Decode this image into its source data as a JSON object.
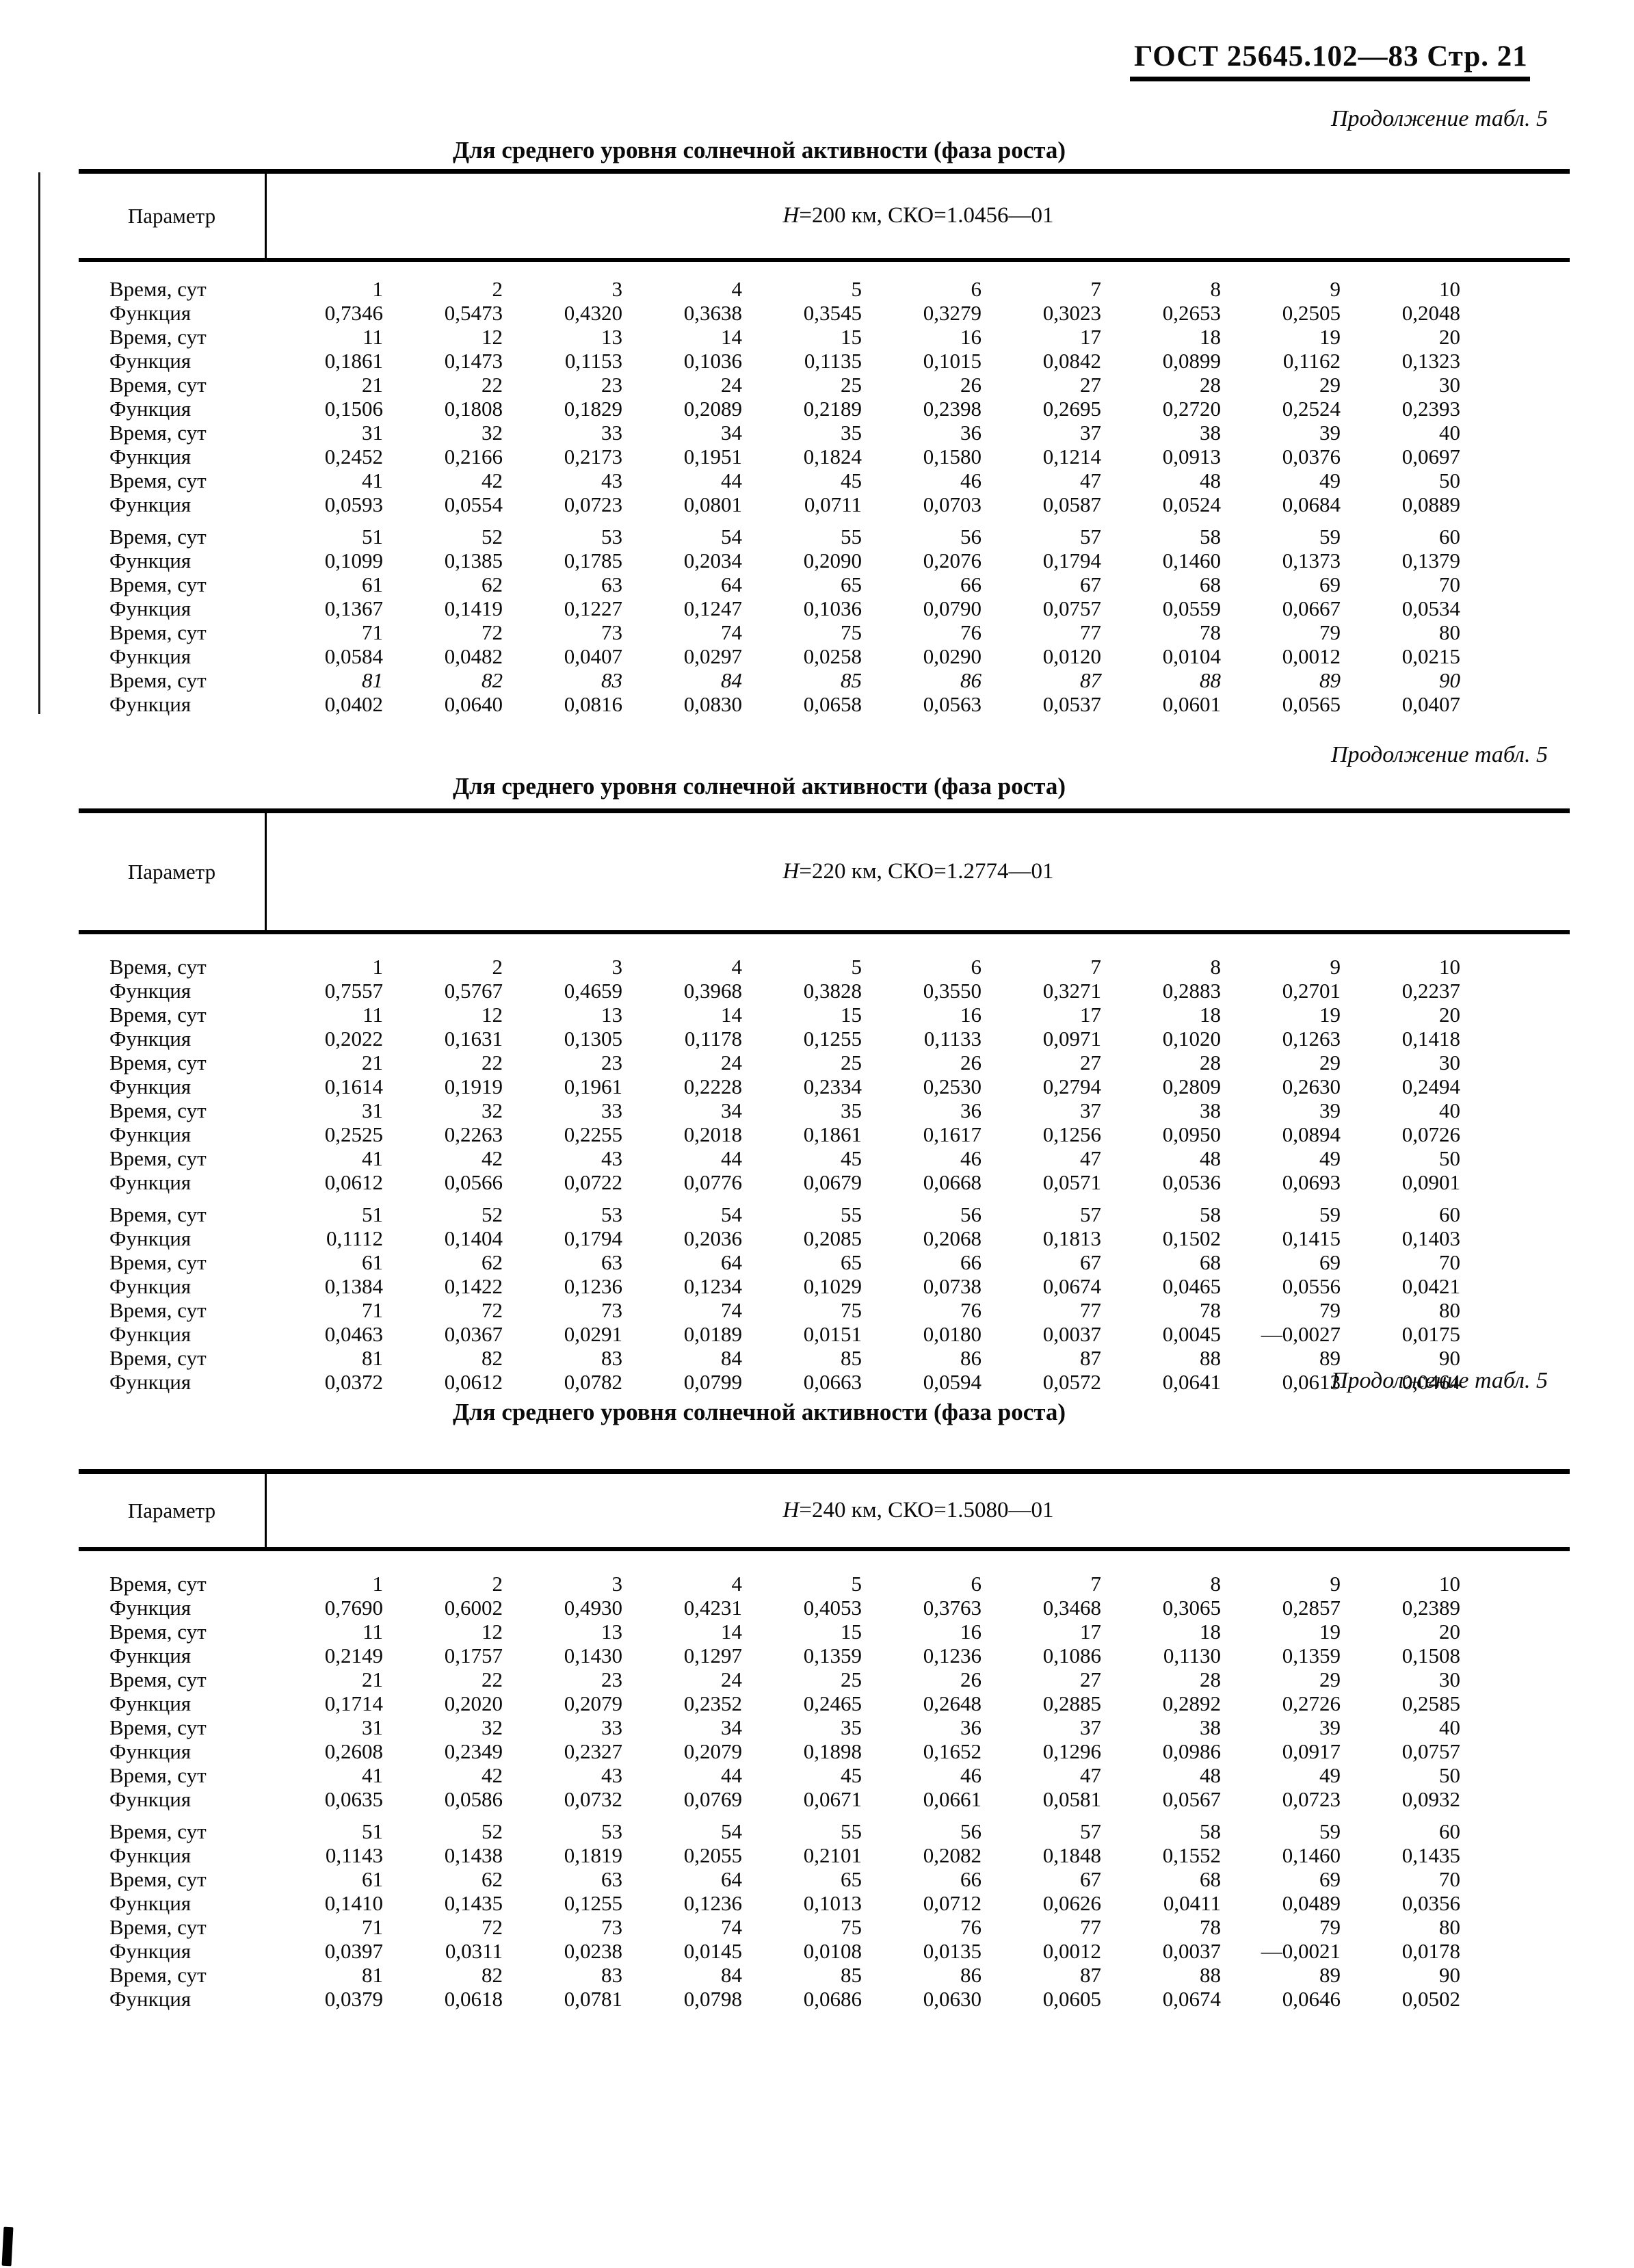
{
  "page_header": {
    "title": "ГОСТ 25645.102—83 Стр. 21"
  },
  "sections": [
    {
      "continuation": "Продолжение табл. 5",
      "title": "Для среднего уровня солнечной активности (фаза роста)",
      "param_label": "Параметр",
      "time_label": "Время, сут",
      "function_label": "Функция",
      "condition_h": "H",
      "condition_rest": "=200 км, СКО=1.0456—01",
      "pairs": [
        {
          "days": [
            "1",
            "2",
            "3",
            "4",
            "5",
            "6",
            "7",
            "8",
            "9",
            "10"
          ],
          "values": [
            "0,7346",
            "0,5473",
            "0,4320",
            "0,3638",
            "0,3545",
            "0,3279",
            "0,3023",
            "0,2653",
            "0,2505",
            "0,2048"
          ]
        },
        {
          "days": [
            "11",
            "12",
            "13",
            "14",
            "15",
            "16",
            "17",
            "18",
            "19",
            "20"
          ],
          "values": [
            "0,1861",
            "0,1473",
            "0,1153",
            "0,1036",
            "0,1135",
            "0,1015",
            "0,0842",
            "0,0899",
            "0,1162",
            "0,1323"
          ]
        },
        {
          "days": [
            "21",
            "22",
            "23",
            "24",
            "25",
            "26",
            "27",
            "28",
            "29",
            "30"
          ],
          "values": [
            "0,1506",
            "0,1808",
            "0,1829",
            "0,2089",
            "0,2189",
            "0,2398",
            "0,2695",
            "0,2720",
            "0,2524",
            "0,2393"
          ]
        },
        {
          "days": [
            "31",
            "32",
            "33",
            "34",
            "35",
            "36",
            "37",
            "38",
            "39",
            "40"
          ],
          "values": [
            "0,2452",
            "0,2166",
            "0,2173",
            "0,1951",
            "0,1824",
            "0,1580",
            "0,1214",
            "0,0913",
            "0,0376",
            "0,0697"
          ]
        },
        {
          "days": [
            "41",
            "42",
            "43",
            "44",
            "45",
            "46",
            "47",
            "48",
            "49",
            "50"
          ],
          "values": [
            "0,0593",
            "0,0554",
            "0,0723",
            "0,0801",
            "0,0711",
            "0,0703",
            "0,0587",
            "0,0524",
            "0,0684",
            "0,0889"
          ]
        },
        {
          "days": [
            "51",
            "52",
            "53",
            "54",
            "55",
            "56",
            "57",
            "58",
            "59",
            "60"
          ],
          "values": [
            "0,1099",
            "0,1385",
            "0,1785",
            "0,2034",
            "0,2090",
            "0,2076",
            "0,1794",
            "0,1460",
            "0,1373",
            "0,1379"
          ]
        },
        {
          "days": [
            "61",
            "62",
            "63",
            "64",
            "65",
            "66",
            "67",
            "68",
            "69",
            "70"
          ],
          "values": [
            "0,1367",
            "0,1419",
            "0,1227",
            "0,1247",
            "0,1036",
            "0,0790",
            "0,0757",
            "0,0559",
            "0,0667",
            "0,0534"
          ]
        },
        {
          "days": [
            "71",
            "72",
            "73",
            "74",
            "75",
            "76",
            "77",
            "78",
            "79",
            "80"
          ],
          "values": [
            "0,0584",
            "0,0482",
            "0,0407",
            "0,0297",
            "0,0258",
            "0,0290",
            "0,0120",
            "0,0104",
            "0,0012",
            "0,0215"
          ]
        },
        {
          "days": [
            "81",
            "82",
            "83",
            "84",
            "85",
            "86",
            "87",
            "88",
            "89",
            "90"
          ],
          "italic_days": true,
          "values": [
            "0,0402",
            "0,0640",
            "0,0816",
            "0,0830",
            "0,0658",
            "0,0563",
            "0,0537",
            "0,0601",
            "0,0565",
            "0,0407"
          ]
        }
      ]
    },
    {
      "continuation": "Продолжение табл. 5",
      "title": "Для среднего уровня солнечной активности (фаза роста)",
      "param_label": "Параметр",
      "time_label": "Время, сут",
      "function_label": "Функция",
      "condition_h": "H",
      "condition_rest": "=220 км, СКО=1.2774—01",
      "pairs": [
        {
          "days": [
            "1",
            "2",
            "3",
            "4",
            "5",
            "6",
            "7",
            "8",
            "9",
            "10"
          ],
          "values": [
            "0,7557",
            "0,5767",
            "0,4659",
            "0,3968",
            "0,3828",
            "0,3550",
            "0,3271",
            "0,2883",
            "0,2701",
            "0,2237"
          ]
        },
        {
          "days": [
            "11",
            "12",
            "13",
            "14",
            "15",
            "16",
            "17",
            "18",
            "19",
            "20"
          ],
          "values": [
            "0,2022",
            "0,1631",
            "0,1305",
            "0,1178",
            "0,1255",
            "0,1133",
            "0,0971",
            "0,1020",
            "0,1263",
            "0,1418"
          ]
        },
        {
          "days": [
            "21",
            "22",
            "23",
            "24",
            "25",
            "26",
            "27",
            "28",
            "29",
            "30"
          ],
          "values": [
            "0,1614",
            "0,1919",
            "0,1961",
            "0,2228",
            "0,2334",
            "0,2530",
            "0,2794",
            "0,2809",
            "0,2630",
            "0,2494"
          ]
        },
        {
          "days": [
            "31",
            "32",
            "33",
            "34",
            "35",
            "36",
            "37",
            "38",
            "39",
            "40"
          ],
          "values": [
            "0,2525",
            "0,2263",
            "0,2255",
            "0,2018",
            "0,1861",
            "0,1617",
            "0,1256",
            "0,0950",
            "0,0894",
            "0,0726"
          ]
        },
        {
          "days": [
            "41",
            "42",
            "43",
            "44",
            "45",
            "46",
            "47",
            "48",
            "49",
            "50"
          ],
          "values": [
            "0,0612",
            "0,0566",
            "0,0722",
            "0,0776",
            "0,0679",
            "0,0668",
            "0,0571",
            "0,0536",
            "0,0693",
            "0,0901"
          ]
        },
        {
          "days": [
            "51",
            "52",
            "53",
            "54",
            "55",
            "56",
            "57",
            "58",
            "59",
            "60"
          ],
          "values": [
            "0,1112",
            "0,1404",
            "0,1794",
            "0,2036",
            "0,2085",
            "0,2068",
            "0,1813",
            "0,1502",
            "0,1415",
            "0,1403"
          ]
        },
        {
          "days": [
            "61",
            "62",
            "63",
            "64",
            "65",
            "66",
            "67",
            "68",
            "69",
            "70"
          ],
          "values": [
            "0,1384",
            "0,1422",
            "0,1236",
            "0,1234",
            "0,1029",
            "0,0738",
            "0,0674",
            "0,0465",
            "0,0556",
            "0,0421"
          ]
        },
        {
          "days": [
            "71",
            "72",
            "73",
            "74",
            "75",
            "76",
            "77",
            "78",
            "79",
            "80"
          ],
          "values": [
            "0,0463",
            "0,0367",
            "0,0291",
            "0,0189",
            "0,0151",
            "0,0180",
            "0,0037",
            "0,0045",
            "—0,0027",
            "0,0175"
          ]
        },
        {
          "days": [
            "81",
            "82",
            "83",
            "84",
            "85",
            "86",
            "87",
            "88",
            "89",
            "90"
          ],
          "values": [
            "0,0372",
            "0,0612",
            "0,0782",
            "0,0799",
            "0,0663",
            "0,0594",
            "0,0572",
            "0,0641",
            "0,0613",
            "0,0464"
          ]
        }
      ]
    },
    {
      "continuation": "Продолжение табл. 5",
      "title": "Для среднего уровня солнечной активности (фаза роста)",
      "param_label": "Параметр",
      "time_label": "Время, сут",
      "function_label": "Функция",
      "condition_h": "H",
      "condition_rest": "=240 км, СКО=1.5080—01",
      "pairs": [
        {
          "days": [
            "1",
            "2",
            "3",
            "4",
            "5",
            "6",
            "7",
            "8",
            "9",
            "10"
          ],
          "values": [
            "0,7690",
            "0,6002",
            "0,4930",
            "0,4231",
            "0,4053",
            "0,3763",
            "0,3468",
            "0,3065",
            "0,2857",
            "0,2389"
          ]
        },
        {
          "days": [
            "11",
            "12",
            "13",
            "14",
            "15",
            "16",
            "17",
            "18",
            "19",
            "20"
          ],
          "values": [
            "0,2149",
            "0,1757",
            "0,1430",
            "0,1297",
            "0,1359",
            "0,1236",
            "0,1086",
            "0,1130",
            "0,1359",
            "0,1508"
          ]
        },
        {
          "days": [
            "21",
            "22",
            "23",
            "24",
            "25",
            "26",
            "27",
            "28",
            "29",
            "30"
          ],
          "values": [
            "0,1714",
            "0,2020",
            "0,2079",
            "0,2352",
            "0,2465",
            "0,2648",
            "0,2885",
            "0,2892",
            "0,2726",
            "0,2585"
          ]
        },
        {
          "days": [
            "31",
            "32",
            "33",
            "34",
            "35",
            "36",
            "37",
            "38",
            "39",
            "40"
          ],
          "values": [
            "0,2608",
            "0,2349",
            "0,2327",
            "0,2079",
            "0,1898",
            "0,1652",
            "0,1296",
            "0,0986",
            "0,0917",
            "0,0757"
          ]
        },
        {
          "days": [
            "41",
            "42",
            "43",
            "44",
            "45",
            "46",
            "47",
            "48",
            "49",
            "50"
          ],
          "values": [
            "0,0635",
            "0,0586",
            "0,0732",
            "0,0769",
            "0,0671",
            "0,0661",
            "0,0581",
            "0,0567",
            "0,0723",
            "0,0932"
          ]
        },
        {
          "days": [
            "51",
            "52",
            "53",
            "54",
            "55",
            "56",
            "57",
            "58",
            "59",
            "60"
          ],
          "values": [
            "0,1143",
            "0,1438",
            "0,1819",
            "0,2055",
            "0,2101",
            "0,2082",
            "0,1848",
            "0,1552",
            "0,1460",
            "0,1435"
          ]
        },
        {
          "days": [
            "61",
            "62",
            "63",
            "64",
            "65",
            "66",
            "67",
            "68",
            "69",
            "70"
          ],
          "values": [
            "0,1410",
            "0,1435",
            "0,1255",
            "0,1236",
            "0,1013",
            "0,0712",
            "0,0626",
            "0,0411",
            "0,0489",
            "0,0356"
          ]
        },
        {
          "days": [
            "71",
            "72",
            "73",
            "74",
            "75",
            "76",
            "77",
            "78",
            "79",
            "80"
          ],
          "values": [
            "0,0397",
            "0,0311",
            "0,0238",
            "0,0145",
            "0,0108",
            "0,0135",
            "0,0012",
            "0,0037",
            "—0,0021",
            "0,0178"
          ]
        },
        {
          "days": [
            "81",
            "82",
            "83",
            "84",
            "85",
            "86",
            "87",
            "88",
            "89",
            "90"
          ],
          "values": [
            "0,0379",
            "0,0618",
            "0,0781",
            "0,0798",
            "0,0686",
            "0,0630",
            "0,0605",
            "0,0674",
            "0,0646",
            "0,0502"
          ]
        }
      ]
    }
  ]
}
